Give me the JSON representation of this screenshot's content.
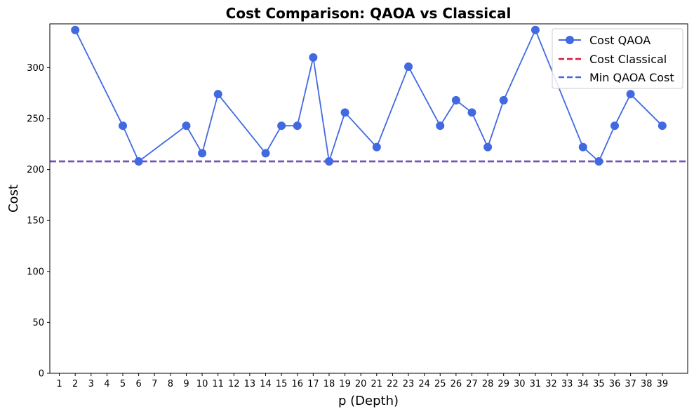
{
  "chart_data": {
    "type": "line",
    "title": "Cost Comparison: QAOA vs Classical",
    "xlabel": "p (Depth)",
    "ylabel": "Cost",
    "xlim": [
      0.4,
      40.6
    ],
    "ylim": [
      0,
      343
    ],
    "x_ticks": [
      1,
      2,
      3,
      4,
      5,
      6,
      7,
      8,
      9,
      10,
      11,
      12,
      13,
      14,
      15,
      16,
      17,
      18,
      19,
      20,
      21,
      22,
      23,
      24,
      25,
      26,
      27,
      28,
      29,
      30,
      31,
      32,
      33,
      34,
      35,
      36,
      37,
      38,
      39
    ],
    "y_ticks": [
      0,
      50,
      100,
      150,
      200,
      250,
      300
    ],
    "grid": false,
    "legend": "top-right",
    "series": [
      {
        "name": "Cost QAOA",
        "style": "line-markers",
        "color": "#4169e1",
        "x": [
          2,
          5,
          6,
          9,
          10,
          11,
          14,
          15,
          16,
          17,
          18,
          19,
          21,
          23,
          25,
          26,
          27,
          28,
          29,
          31,
          34,
          35,
          36,
          37,
          39
        ],
        "y": [
          337,
          243,
          208,
          243,
          216,
          274,
          216,
          243,
          243,
          310,
          208,
          256,
          222,
          301,
          243,
          268,
          256,
          222,
          268,
          337,
          222,
          208,
          243,
          274,
          243
        ]
      },
      {
        "name": "Cost Classical",
        "style": "dashed-hline",
        "color": "#dc143c",
        "y": 208
      },
      {
        "name": "Min QAOA Cost",
        "style": "dashed-hline",
        "color": "#4169e1",
        "y": 208
      }
    ]
  }
}
